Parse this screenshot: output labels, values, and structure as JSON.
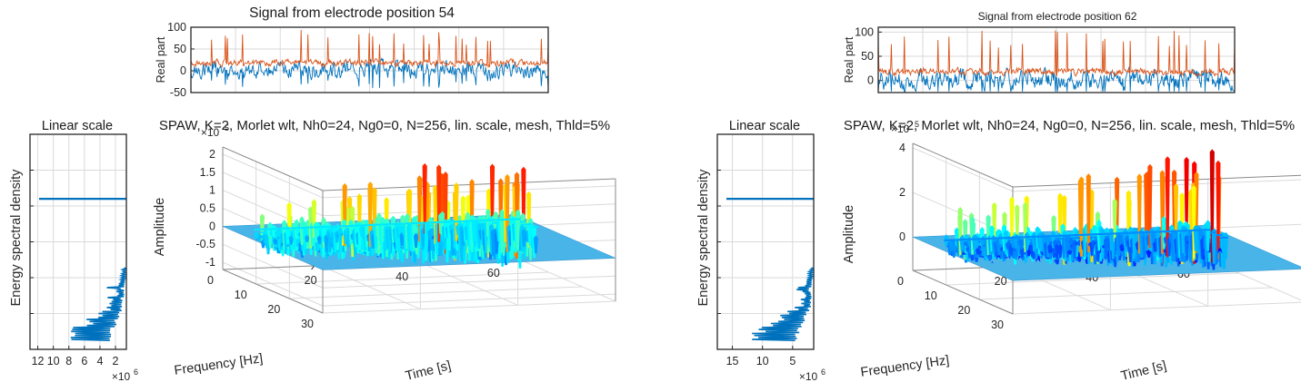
{
  "colors": {
    "real_signal": "#d95319",
    "imag_signal": "#0072bd",
    "spectrum_line": "#0072bd",
    "axis": "#262626",
    "grid": "#dadada",
    "surface_colormap": "jet"
  },
  "chart_data": [
    {
      "type": "line",
      "panel": "left",
      "title": "Signal from electrode position 54",
      "ylabel": "Real part",
      "ylim": [
        -50,
        100
      ],
      "yticks": [
        "100",
        "50",
        "0",
        "-50"
      ],
      "series_colors": [
        "#d95319",
        "#0072bd"
      ],
      "grid": true,
      "seed": 54
    },
    {
      "type": "line",
      "panel": "left",
      "title": "Linear scale",
      "xlabel": "",
      "ylabel": "Energy spectral density",
      "x_reversed": true,
      "xticks": [
        "12",
        "10",
        "8",
        "6",
        "4",
        "2"
      ],
      "x_exponent": "×10",
      "x_exponent_power": "6",
      "peak_value": 13000000,
      "grid": true
    },
    {
      "type": "surface",
      "panel": "left",
      "title": "SPAW, K=2, Morlet wlt, Nh0=24, Ng0=0, N=256, lin. scale, mesh, Thld=5%",
      "xlabel": "Time [s]",
      "ylabel": "Frequency [Hz]",
      "zlabel": "Amplitude",
      "xticks": [
        "20",
        "40",
        "60"
      ],
      "yticks": [
        "30",
        "20",
        "10",
        "0"
      ],
      "zticks": [
        "2",
        "1.5",
        "1",
        "0.5",
        "0",
        "-0.5",
        "-1"
      ],
      "z_exponent": "×10",
      "z_exponent_power": "5",
      "zlim": [
        -1.2,
        2.2
      ],
      "grid": true,
      "seed": 54
    },
    {
      "type": "line",
      "panel": "right",
      "title": "Signal from electrode position 62",
      "ylabel": "Real part",
      "ylim": [
        -25,
        110
      ],
      "yticks": [
        "100",
        "50",
        "0"
      ],
      "series_colors": [
        "#d95319",
        "#0072bd"
      ],
      "grid": true,
      "seed": 62
    },
    {
      "type": "line",
      "panel": "right",
      "title": "Linear scale",
      "xlabel": "",
      "ylabel": "Energy spectral density",
      "x_reversed": true,
      "xticks": [
        "15",
        "10",
        "5"
      ],
      "x_exponent": "×10",
      "x_exponent_power": "6",
      "peak_value": 16500000,
      "grid": true
    },
    {
      "type": "surface",
      "panel": "right",
      "title": "SPAW, K=2, Morlet wlt, Nh0=24, Ng0=0, N=256, lin. scale, mesh, Thld=5%",
      "xlabel": "Time [s]",
      "ylabel": "Frequency [Hz]",
      "zlabel": "Amplitude",
      "xticks": [
        "20",
        "40",
        "60"
      ],
      "yticks": [
        "30",
        "20",
        "10",
        "0"
      ],
      "zticks": [
        "4",
        "2",
        "0"
      ],
      "z_exponent": "×10",
      "z_exponent_power": "5",
      "zlim": [
        -1.5,
        4.2
      ],
      "grid": true,
      "seed": 62
    }
  ]
}
